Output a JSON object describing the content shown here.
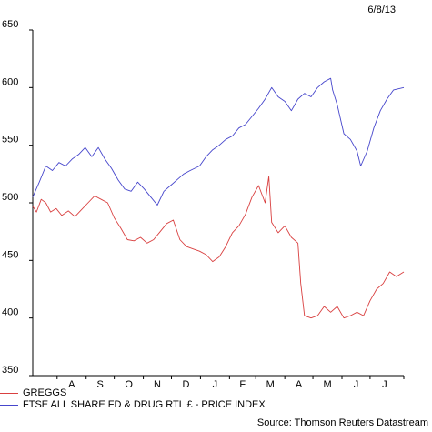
{
  "date_label": "6/8/13",
  "source_note": "Source: Thomson Reuters Datastream",
  "colors": {
    "greggs": "#d94040",
    "ftse": "#4646cc",
    "axis": "#000000"
  },
  "chart_data": {
    "type": "line",
    "title": "",
    "ylim": [
      350,
      650
    ],
    "yticks": [
      350,
      400,
      450,
      500,
      550,
      600,
      650
    ],
    "x_range": [
      "2012-07-06",
      "2013-08-06"
    ],
    "month_labels": [
      {
        "label": "A",
        "month": "2012-08"
      },
      {
        "label": "S",
        "month": "2012-09"
      },
      {
        "label": "O",
        "month": "2012-10"
      },
      {
        "label": "N",
        "month": "2012-11"
      },
      {
        "label": "D",
        "month": "2012-12"
      },
      {
        "label": "J",
        "month": "2013-01"
      },
      {
        "label": "F",
        "month": "2013-02"
      },
      {
        "label": "M",
        "month": "2013-03"
      },
      {
        "label": "A",
        "month": "2013-04"
      },
      {
        "label": "M",
        "month": "2013-05"
      },
      {
        "label": "J",
        "month": "2013-06"
      },
      {
        "label": "J",
        "month": "2013-07"
      }
    ],
    "grid": false,
    "legend": "bottom-left",
    "series": [
      {
        "name": "GREGGS",
        "color": "#d94040",
        "points": [
          [
            "2012-07-06",
            497
          ],
          [
            "2012-07-10",
            492
          ],
          [
            "2012-07-15",
            503
          ],
          [
            "2012-07-20",
            500
          ],
          [
            "2012-07-25",
            492
          ],
          [
            "2012-07-31",
            495
          ],
          [
            "2012-08-06",
            489
          ],
          [
            "2012-08-13",
            493
          ],
          [
            "2012-08-20",
            488
          ],
          [
            "2012-08-27",
            494
          ],
          [
            "2012-09-03",
            500
          ],
          [
            "2012-09-10",
            506
          ],
          [
            "2012-09-17",
            503
          ],
          [
            "2012-09-24",
            500
          ],
          [
            "2012-10-01",
            487
          ],
          [
            "2012-10-08",
            478
          ],
          [
            "2012-10-15",
            468
          ],
          [
            "2012-10-22",
            467
          ],
          [
            "2012-10-29",
            470
          ],
          [
            "2012-11-05",
            465
          ],
          [
            "2012-11-12",
            468
          ],
          [
            "2012-11-19",
            475
          ],
          [
            "2012-11-26",
            482
          ],
          [
            "2012-12-03",
            485
          ],
          [
            "2012-12-10",
            468
          ],
          [
            "2012-12-17",
            462
          ],
          [
            "2012-12-24",
            460
          ],
          [
            "2012-12-31",
            458
          ],
          [
            "2013-01-07",
            455
          ],
          [
            "2013-01-14",
            449
          ],
          [
            "2013-01-21",
            453
          ],
          [
            "2013-01-28",
            462
          ],
          [
            "2013-02-04",
            474
          ],
          [
            "2013-02-11",
            480
          ],
          [
            "2013-02-18",
            490
          ],
          [
            "2013-02-25",
            505
          ],
          [
            "2013-03-04",
            515
          ],
          [
            "2013-03-11",
            500
          ],
          [
            "2013-03-15",
            523
          ],
          [
            "2013-03-18",
            483
          ],
          [
            "2013-03-25",
            474
          ],
          [
            "2013-04-01",
            480
          ],
          [
            "2013-04-08",
            470
          ],
          [
            "2013-04-15",
            465
          ],
          [
            "2013-04-18",
            430
          ],
          [
            "2013-04-22",
            402
          ],
          [
            "2013-04-29",
            400
          ],
          [
            "2013-05-06",
            402
          ],
          [
            "2013-05-13",
            410
          ],
          [
            "2013-05-20",
            405
          ],
          [
            "2013-05-27",
            410
          ],
          [
            "2013-06-03",
            400
          ],
          [
            "2013-06-10",
            402
          ],
          [
            "2013-06-17",
            405
          ],
          [
            "2013-06-24",
            402
          ],
          [
            "2013-07-01",
            415
          ],
          [
            "2013-07-08",
            425
          ],
          [
            "2013-07-15",
            430
          ],
          [
            "2013-07-22",
            440
          ],
          [
            "2013-07-29",
            436
          ],
          [
            "2013-08-06",
            440
          ]
        ]
      },
      {
        "name": "FTSE ALL SHARE FD & DRUG RTL £ - PRICE INDEX",
        "color": "#4646cc",
        "points": [
          [
            "2012-07-06",
            505
          ],
          [
            "2012-07-13",
            518
          ],
          [
            "2012-07-20",
            532
          ],
          [
            "2012-07-27",
            528
          ],
          [
            "2012-08-03",
            535
          ],
          [
            "2012-08-10",
            532
          ],
          [
            "2012-08-17",
            538
          ],
          [
            "2012-08-24",
            542
          ],
          [
            "2012-08-31",
            548
          ],
          [
            "2012-09-07",
            540
          ],
          [
            "2012-09-14",
            548
          ],
          [
            "2012-09-21",
            538
          ],
          [
            "2012-09-28",
            530
          ],
          [
            "2012-10-05",
            520
          ],
          [
            "2012-10-12",
            512
          ],
          [
            "2012-10-19",
            510
          ],
          [
            "2012-10-26",
            518
          ],
          [
            "2012-11-02",
            512
          ],
          [
            "2012-11-09",
            505
          ],
          [
            "2012-11-16",
            498
          ],
          [
            "2012-11-23",
            510
          ],
          [
            "2012-11-30",
            515
          ],
          [
            "2012-12-07",
            520
          ],
          [
            "2012-12-14",
            525
          ],
          [
            "2012-12-21",
            528
          ],
          [
            "2012-12-31",
            532
          ],
          [
            "2013-01-07",
            540
          ],
          [
            "2013-01-14",
            546
          ],
          [
            "2013-01-21",
            550
          ],
          [
            "2013-01-28",
            555
          ],
          [
            "2013-02-04",
            558
          ],
          [
            "2013-02-11",
            565
          ],
          [
            "2013-02-18",
            568
          ],
          [
            "2013-02-25",
            575
          ],
          [
            "2013-03-04",
            582
          ],
          [
            "2013-03-11",
            590
          ],
          [
            "2013-03-18",
            600
          ],
          [
            "2013-03-25",
            592
          ],
          [
            "2013-04-01",
            588
          ],
          [
            "2013-04-08",
            580
          ],
          [
            "2013-04-15",
            590
          ],
          [
            "2013-04-22",
            595
          ],
          [
            "2013-04-29",
            592
          ],
          [
            "2013-05-06",
            600
          ],
          [
            "2013-05-13",
            605
          ],
          [
            "2013-05-20",
            608
          ],
          [
            "2013-05-22",
            598
          ],
          [
            "2013-05-27",
            585
          ],
          [
            "2013-06-03",
            560
          ],
          [
            "2013-06-10",
            555
          ],
          [
            "2013-06-17",
            545
          ],
          [
            "2013-06-21",
            532
          ],
          [
            "2013-06-28",
            545
          ],
          [
            "2013-07-05",
            565
          ],
          [
            "2013-07-12",
            580
          ],
          [
            "2013-07-19",
            590
          ],
          [
            "2013-07-26",
            598
          ],
          [
            "2013-08-06",
            600
          ]
        ]
      }
    ]
  }
}
